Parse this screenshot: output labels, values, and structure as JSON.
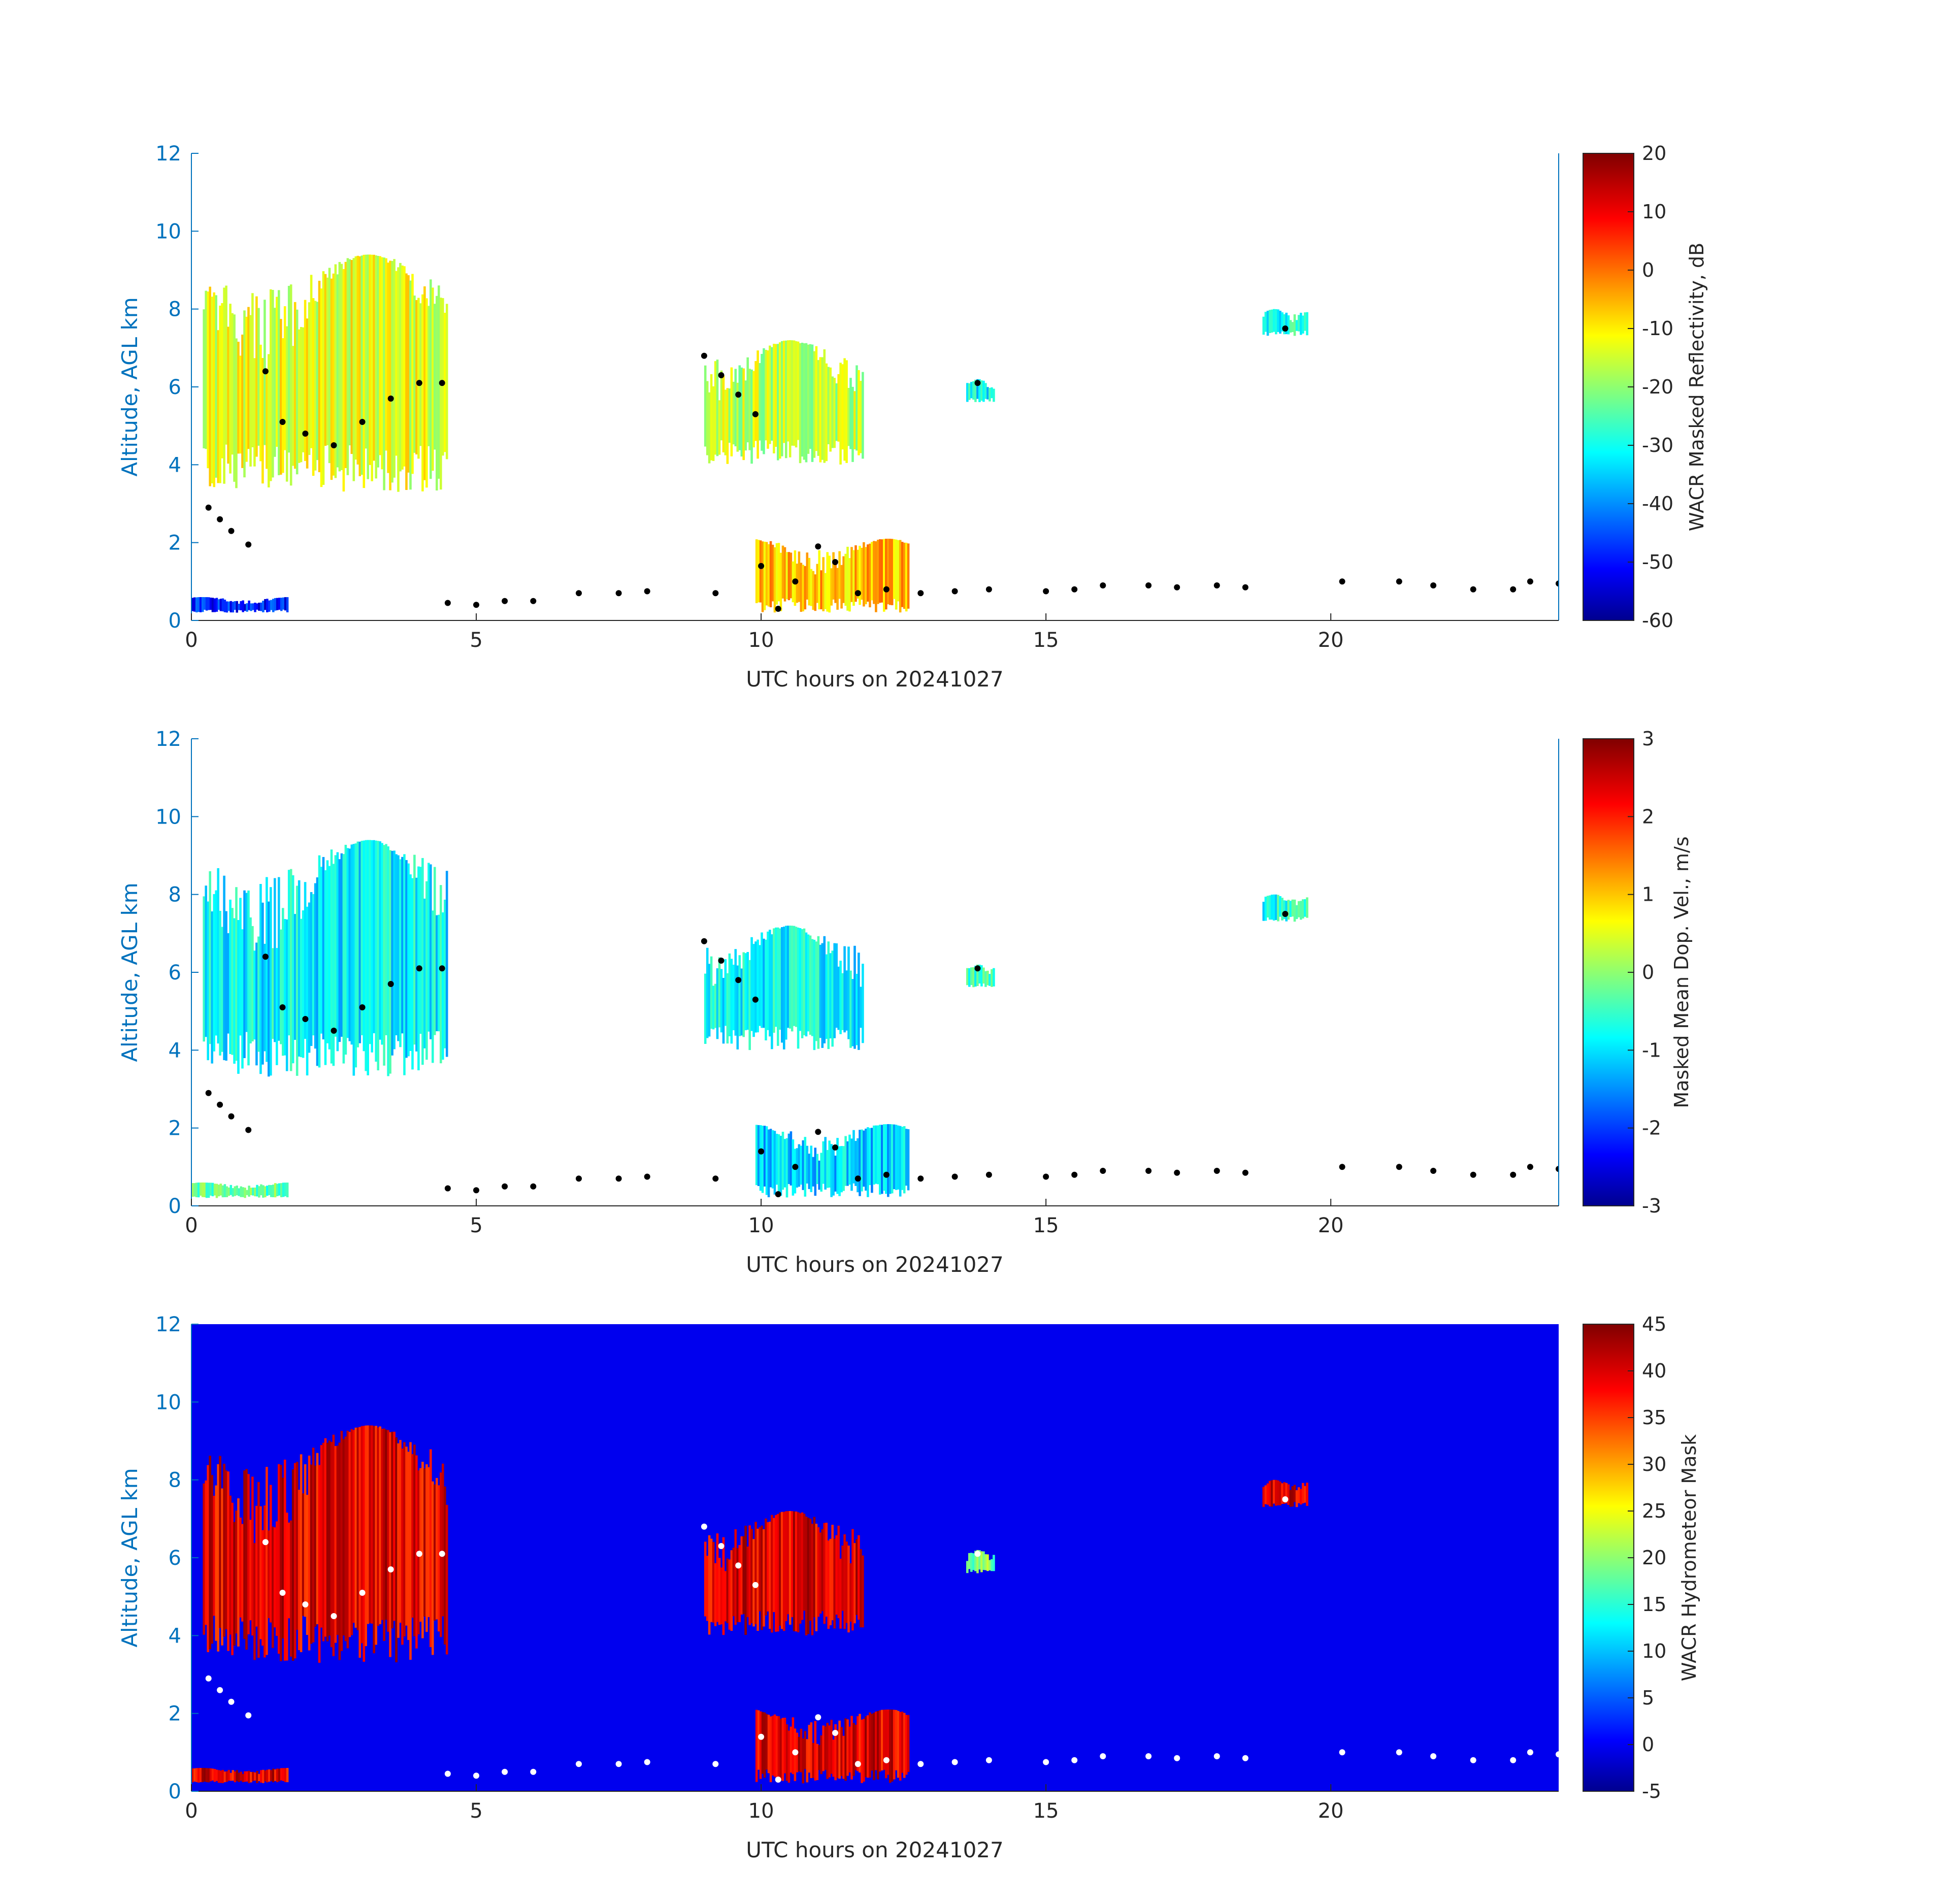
{
  "figure": {
    "xlabel": "UTC hours on 20241027",
    "ylabel": "Altitude, AGL km",
    "axis_color": "#0072BD"
  },
  "colorbars": [
    {
      "label": "WACR Masked Reflectivity, dB",
      "ticks": [
        "20",
        "10",
        "0",
        "-10",
        "-20",
        "-30",
        "-40",
        "-50",
        "-60"
      ]
    },
    {
      "label": "Masked Mean Dop. Vel., m/s",
      "ticks": [
        "3",
        "2",
        "1",
        "0",
        "-1",
        "-2",
        "-3"
      ]
    },
    {
      "label": "WACR Hydrometeor Mask",
      "ticks": [
        "45",
        "40",
        "35",
        "30",
        "25",
        "20",
        "15",
        "10",
        "5",
        "0",
        "-5"
      ]
    }
  ],
  "chart_data": [
    {
      "type": "heatmap",
      "title": "",
      "xlabel": "UTC hours on 20241027",
      "ylabel": "Altitude, AGL km",
      "xlim": [
        0,
        24
      ],
      "ylim": [
        0,
        12
      ],
      "xticks": [
        0,
        5,
        10,
        15,
        20
      ],
      "yticks": [
        0,
        2,
        4,
        6,
        8,
        10,
        12
      ],
      "colorbar": {
        "label": "WACR Masked Reflectivity, dB",
        "range": [
          -60,
          20
        ],
        "colormap": "jet"
      },
      "background": "#ffffff",
      "echo_regions": [
        {
          "x": [
            0.2,
            4.5
          ],
          "y": [
            3.3,
            9.4
          ],
          "value": -12
        },
        {
          "x": [
            9.0,
            11.8
          ],
          "y": [
            4.0,
            7.2
          ],
          "value": -15
        },
        {
          "x": [
            13.6,
            14.1
          ],
          "y": [
            5.6,
            6.2
          ],
          "value": -30
        },
        {
          "x": [
            18.8,
            19.6
          ],
          "y": [
            7.3,
            8.0
          ],
          "value": -28
        },
        {
          "x": [
            0.0,
            1.7
          ],
          "y": [
            0.2,
            0.6
          ],
          "value": -48
        },
        {
          "x": [
            9.9,
            12.6
          ],
          "y": [
            0.2,
            2.1
          ],
          "value": -5
        }
      ],
      "cloud_base_points": [
        [
          0.3,
          2.9
        ],
        [
          0.5,
          2.6
        ],
        [
          0.7,
          2.3
        ],
        [
          1.0,
          1.95
        ],
        [
          1.3,
          6.4
        ],
        [
          1.6,
          5.1
        ],
        [
          2.0,
          4.8
        ],
        [
          2.5,
          4.5
        ],
        [
          3.0,
          5.1
        ],
        [
          3.5,
          5.7
        ],
        [
          4.0,
          6.1
        ],
        [
          4.4,
          6.1
        ],
        [
          4.5,
          0.45
        ],
        [
          5.0,
          0.4
        ],
        [
          5.5,
          0.5
        ],
        [
          6.0,
          0.5
        ],
        [
          6.8,
          0.7
        ],
        [
          7.5,
          0.7
        ],
        [
          8.0,
          0.75
        ],
        [
          9.2,
          0.7
        ],
        [
          9.0,
          6.8
        ],
        [
          9.3,
          6.3
        ],
        [
          9.6,
          5.8
        ],
        [
          9.9,
          5.3
        ],
        [
          10.0,
          1.4
        ],
        [
          10.3,
          0.3
        ],
        [
          10.6,
          1.0
        ],
        [
          11.0,
          1.9
        ],
        [
          11.3,
          1.5
        ],
        [
          11.7,
          0.7
        ],
        [
          12.2,
          0.8
        ],
        [
          12.8,
          0.7
        ],
        [
          13.4,
          0.75
        ],
        [
          13.8,
          6.1
        ],
        [
          14.0,
          0.8
        ],
        [
          15.0,
          0.75
        ],
        [
          15.5,
          0.8
        ],
        [
          16.0,
          0.9
        ],
        [
          16.8,
          0.9
        ],
        [
          17.3,
          0.85
        ],
        [
          18.0,
          0.9
        ],
        [
          18.5,
          0.85
        ],
        [
          19.2,
          7.5
        ],
        [
          20.2,
          1.0
        ],
        [
          21.2,
          1.0
        ],
        [
          21.8,
          0.9
        ],
        [
          22.5,
          0.8
        ],
        [
          23.2,
          0.8
        ],
        [
          23.5,
          1.0
        ],
        [
          24.0,
          0.95
        ]
      ]
    },
    {
      "type": "heatmap",
      "title": "",
      "xlabel": "UTC hours on 20241027",
      "ylabel": "Altitude, AGL km",
      "xlim": [
        0,
        24
      ],
      "ylim": [
        0,
        12
      ],
      "xticks": [
        0,
        5,
        10,
        15,
        20
      ],
      "yticks": [
        0,
        2,
        4,
        6,
        8,
        10,
        12
      ],
      "colorbar": {
        "label": "Masked Mean Dop. Vel., m/s",
        "range": [
          -3,
          3
        ],
        "colormap": "jet"
      },
      "background": "#ffffff",
      "echo_regions": [
        {
          "x": [
            0.2,
            4.5
          ],
          "y": [
            3.3,
            9.4
          ],
          "value": -0.8
        },
        {
          "x": [
            9.0,
            11.8
          ],
          "y": [
            4.0,
            7.2
          ],
          "value": -0.8
        },
        {
          "x": [
            13.6,
            14.1
          ],
          "y": [
            5.6,
            6.2
          ],
          "value": -0.5
        },
        {
          "x": [
            18.8,
            19.6
          ],
          "y": [
            7.3,
            8.0
          ],
          "value": -0.6
        },
        {
          "x": [
            0.0,
            1.7
          ],
          "y": [
            0.2,
            0.6
          ],
          "value": -0.2
        },
        {
          "x": [
            9.9,
            12.6
          ],
          "y": [
            0.2,
            2.1
          ],
          "value": -1.0
        }
      ],
      "cloud_base_points": "same as panel 1"
    },
    {
      "type": "heatmap",
      "title": "",
      "xlabel": "UTC hours on 20241027",
      "ylabel": "Altitude, AGL km",
      "xlim": [
        0,
        24
      ],
      "ylim": [
        0,
        12
      ],
      "xticks": [
        0,
        5,
        10,
        15,
        20
      ],
      "yticks": [
        0,
        2,
        4,
        6,
        8,
        10,
        12
      ],
      "colorbar": {
        "label": "WACR Hydrometeor Mask",
        "range": [
          -5,
          45
        ],
        "colormap": "jet"
      },
      "background_value": 0,
      "background": "#0000EE",
      "echo_regions": [
        {
          "x": [
            0.2,
            4.5
          ],
          "y": [
            3.3,
            9.4
          ],
          "value": 40
        },
        {
          "x": [
            9.0,
            11.8
          ],
          "y": [
            4.0,
            7.2
          ],
          "value": 40
        },
        {
          "x": [
            13.6,
            14.1
          ],
          "y": [
            5.6,
            6.2
          ],
          "value": 20
        },
        {
          "x": [
            18.8,
            19.6
          ],
          "y": [
            7.3,
            8.0
          ],
          "value": 40
        },
        {
          "x": [
            0.0,
            1.7
          ],
          "y": [
            0.2,
            0.6
          ],
          "value": 40
        },
        {
          "x": [
            9.9,
            12.6
          ],
          "y": [
            0.2,
            2.1
          ],
          "value": 40
        }
      ],
      "cloud_base_points": "same as panel 1",
      "cloud_base_color": "#ffffff"
    }
  ]
}
